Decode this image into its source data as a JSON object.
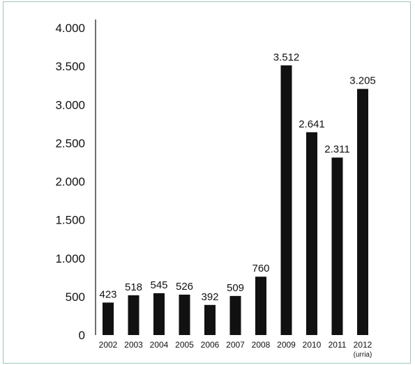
{
  "chart_data": {
    "type": "bar",
    "categories": [
      "2002",
      "2003",
      "2004",
      "2005",
      "2006",
      "2007",
      "2008",
      "2009",
      "2010",
      "2011",
      "2012"
    ],
    "category_notes": [
      "",
      "",
      "",
      "",
      "",
      "",
      "",
      "",
      "",
      "",
      "(urria)"
    ],
    "values": [
      423,
      518,
      545,
      526,
      392,
      509,
      760,
      3512,
      2641,
      2311,
      3205
    ],
    "value_labels": [
      "423",
      "518",
      "545",
      "526",
      "392",
      "509",
      "760",
      "3.512",
      "2.641",
      "2.311",
      "3.205"
    ],
    "yticks": [
      0,
      500,
      1000,
      1500,
      2000,
      2500,
      3000,
      3500,
      4000
    ],
    "ytick_labels": [
      "0",
      "500",
      "1.000",
      "1.500",
      "2.000",
      "2.500",
      "3.000",
      "3.500",
      "4.000"
    ],
    "ylim": [
      0,
      4000
    ],
    "grid": false,
    "legend": "none",
    "title": "",
    "xlabel": "",
    "ylabel": "",
    "bar_color": "#111111",
    "frame_color": "#9ec7b4"
  }
}
